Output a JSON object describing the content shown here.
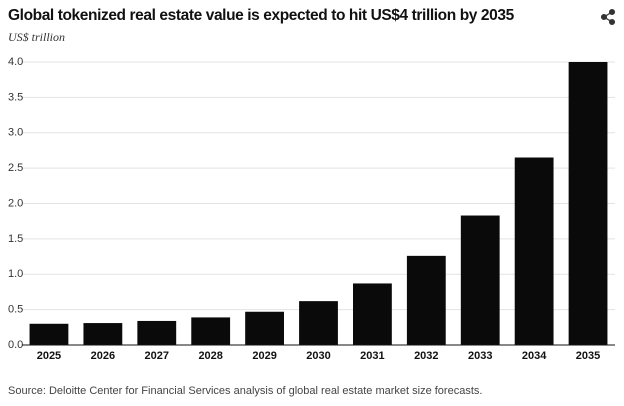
{
  "chart_data": {
    "type": "bar",
    "title": "Global tokenized real estate value is expected to hit US$4 trillion by 2035",
    "y_label": "US$ trillion",
    "source": "Source: Deloitte Center for Financial Services analysis of global real estate market size forecasts.",
    "categories": [
      "2025",
      "2026",
      "2027",
      "2028",
      "2029",
      "2030",
      "2031",
      "2032",
      "2033",
      "2034",
      "2035"
    ],
    "values": [
      0.3,
      0.31,
      0.34,
      0.39,
      0.47,
      0.62,
      0.87,
      1.26,
      1.83,
      2.65,
      4.0
    ],
    "color": "#0a0a0a",
    "ylim": [
      0,
      4.0
    ],
    "yticks": [
      {
        "value": 0,
        "label": "0.0"
      },
      0.5,
      {
        "value": 1,
        "label": "1.0"
      },
      1.5,
      {
        "value": 2,
        "label": "2.0"
      },
      2.5,
      {
        "value": 3,
        "label": "3.0"
      },
      3.5,
      {
        "value": 4,
        "label": "4.0"
      }
    ],
    "grid": true
  }
}
